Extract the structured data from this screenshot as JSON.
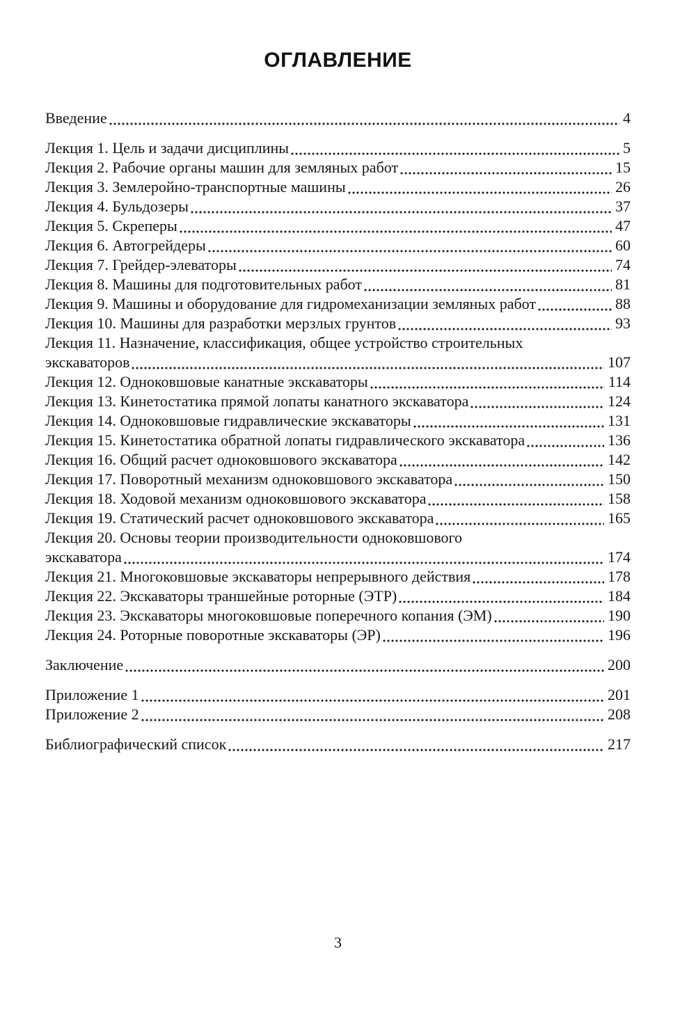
{
  "page": {
    "title": "ОГЛАВЛЕНИЕ",
    "footer_page_number": "3",
    "text_color": "#171717",
    "sections": [
      {
        "name": "intro",
        "entries": [
          {
            "text": "Введение",
            "page": "4"
          }
        ]
      },
      {
        "name": "lectures",
        "entries": [
          {
            "text": "Лекция 1. Цель и задачи дисциплины",
            "page": "5"
          },
          {
            "text": "Лекция 2. Рабочие органы машин для земляных работ",
            "page": "15"
          },
          {
            "text": "Лекция 3. Землеройно-транспортные машины",
            "page": "26"
          },
          {
            "text": "Лекция 4. Бульдозеры",
            "page": "37"
          },
          {
            "text": "Лекция 5. Скреперы",
            "page": "47"
          },
          {
            "text": "Лекция 6. Автогрейдеры",
            "page": "60"
          },
          {
            "text": "Лекция 7. Грейдер-элеваторы",
            "page": "74"
          },
          {
            "text": "Лекция 8. Машины для подготовительных работ",
            "page": "81"
          },
          {
            "text": "Лекция 9. Машины и оборудование для гидромеханизации земляных работ",
            "page": "88"
          },
          {
            "text": "Лекция 10. Машины для разработки мерзлых грунтов",
            "page": "93"
          },
          {
            "text": "Лекция 11. Назначение, классификация, общее устройство строительных",
            "text2": "экскаваторов",
            "page": "107"
          },
          {
            "text": "Лекция 12. Одноковшовые канатные экскаваторы",
            "page": "114"
          },
          {
            "text": "Лекция 13. Кинетостатика прямой лопаты канатного экскаватора",
            "page": "124"
          },
          {
            "text": "Лекция 14. Одноковшовые гидравлические экскаваторы",
            "page": "131"
          },
          {
            "text": "Лекция 15. Кинетостатика обратной лопаты гидравлического экскаватора",
            "page": "136"
          },
          {
            "text": "Лекция 16. Общий расчет одноковшового экскаватора",
            "page": "142"
          },
          {
            "text": "Лекция 17. Поворотный механизм одноковшового экскаватора",
            "page": "150"
          },
          {
            "text": "Лекция 18. Ходовой механизм одноковшового экскаватора",
            "page": "158"
          },
          {
            "text": "Лекция 19. Статический расчет одноковшового экскаватора",
            "page": "165"
          },
          {
            "text": "Лекция 20. Основы теории производительности одноковшового",
            "text2": "экскаватора",
            "page": "174"
          },
          {
            "text": "Лекция 21. Многоковшовые экскаваторы непрерывного действия",
            "page": "178"
          },
          {
            "text": "Лекция 22. Экскаваторы траншейные роторные (ЭТР)",
            "page": "184"
          },
          {
            "text": "Лекция 23. Экскаваторы многоковшовые поперечного копания (ЭМ)",
            "page": "190"
          },
          {
            "text": "Лекция 24. Роторные поворотные экскаваторы (ЭР)",
            "page": "196"
          }
        ]
      },
      {
        "name": "conclusion",
        "entries": [
          {
            "text": "Заключение",
            "page": "200"
          }
        ]
      },
      {
        "name": "appendices",
        "entries": [
          {
            "text": "Приложение 1",
            "page": "201"
          },
          {
            "text": "Приложение 2",
            "page": "208"
          }
        ]
      },
      {
        "name": "bibliography",
        "entries": [
          {
            "text": "Библиографический список",
            "page": "217"
          }
        ]
      }
    ]
  }
}
